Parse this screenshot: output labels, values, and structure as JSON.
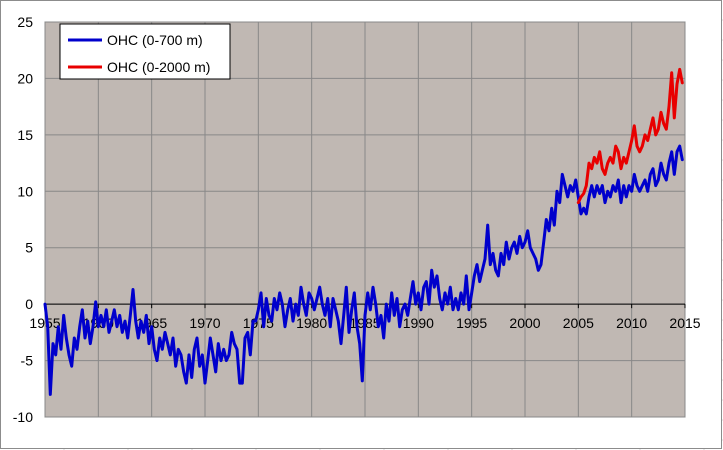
{
  "chart_data": {
    "type": "line",
    "xlim": [
      1955,
      2015
    ],
    "ylim": [
      -10,
      25
    ],
    "x_ticks": [
      1955,
      1960,
      1965,
      1970,
      1975,
      1980,
      1985,
      1990,
      1995,
      2000,
      2005,
      2010,
      2015
    ],
    "y_ticks": [
      -10,
      -5,
      0,
      5,
      10,
      15,
      20,
      25
    ],
    "x_tick_labels": [
      "1955",
      "1960",
      "1965",
      "1970",
      "1975",
      "1980",
      "1985",
      "1990",
      "1995",
      "2000",
      "2005",
      "2010",
      "2015"
    ],
    "y_tick_labels": [
      "-10",
      "-5",
      "0",
      "5",
      "10",
      "15",
      "20",
      "25"
    ],
    "grid": true,
    "legend_position": "top-left",
    "colors": {
      "plot_bg": "#c0b8b3",
      "series_1": "#0000cc",
      "series_2": "#e80000",
      "grid": "#888888",
      "sheet_grid": "#d4d4d4"
    },
    "series": [
      {
        "name": "OHC (0-700 m)",
        "color": "#0000cc",
        "points": [
          [
            1955.0,
            0.0
          ],
          [
            1955.25,
            -2.0
          ],
          [
            1955.5,
            -8.0
          ],
          [
            1955.75,
            -3.5
          ],
          [
            1956.0,
            -4.5
          ],
          [
            1956.25,
            -2.0
          ],
          [
            1956.5,
            -4.0
          ],
          [
            1956.75,
            -1.0
          ],
          [
            1957.0,
            -3.0
          ],
          [
            1957.25,
            -4.5
          ],
          [
            1957.5,
            -5.5
          ],
          [
            1957.75,
            -3.0
          ],
          [
            1958.0,
            -4.0
          ],
          [
            1958.25,
            -2.0
          ],
          [
            1958.5,
            -0.5
          ],
          [
            1958.75,
            -3.0
          ],
          [
            1959.0,
            -1.5
          ],
          [
            1959.25,
            -3.5
          ],
          [
            1959.5,
            -2.0
          ],
          [
            1959.75,
            0.2
          ],
          [
            1960.0,
            -2.0
          ],
          [
            1960.25,
            -1.0
          ],
          [
            1960.5,
            -2.0
          ],
          [
            1960.75,
            -0.5
          ],
          [
            1961.0,
            -2.5
          ],
          [
            1961.25,
            -1.5
          ],
          [
            1961.5,
            -0.5
          ],
          [
            1961.75,
            -2.0
          ],
          [
            1962.0,
            -1.0
          ],
          [
            1962.25,
            -2.5
          ],
          [
            1962.5,
            -1.5
          ],
          [
            1962.75,
            -3.0
          ],
          [
            1963.0,
            -1.0
          ],
          [
            1963.25,
            1.3
          ],
          [
            1963.5,
            -1.5
          ],
          [
            1963.75,
            -3.0
          ],
          [
            1964.0,
            -1.5
          ],
          [
            1964.25,
            -2.5
          ],
          [
            1964.5,
            -1.0
          ],
          [
            1964.75,
            -3.5
          ],
          [
            1965.0,
            -2.0
          ],
          [
            1965.25,
            -4.0
          ],
          [
            1965.5,
            -5.0
          ],
          [
            1965.75,
            -3.0
          ],
          [
            1966.0,
            -4.0
          ],
          [
            1966.25,
            -2.5
          ],
          [
            1966.5,
            -3.5
          ],
          [
            1966.75,
            -4.5
          ],
          [
            1967.0,
            -3.0
          ],
          [
            1967.25,
            -5.5
          ],
          [
            1967.5,
            -4.0
          ],
          [
            1967.75,
            -4.5
          ],
          [
            1968.0,
            -6.0
          ],
          [
            1968.25,
            -7.0
          ],
          [
            1968.5,
            -4.5
          ],
          [
            1968.75,
            -6.5
          ],
          [
            1969.0,
            -4.0
          ],
          [
            1969.25,
            -3.0
          ],
          [
            1969.5,
            -5.5
          ],
          [
            1969.75,
            -4.5
          ],
          [
            1970.0,
            -7.0
          ],
          [
            1970.25,
            -5.0
          ],
          [
            1970.5,
            -3.0
          ],
          [
            1970.75,
            -4.5
          ],
          [
            1971.0,
            -6.0
          ],
          [
            1971.25,
            -3.5
          ],
          [
            1971.5,
            -5.0
          ],
          [
            1971.75,
            -4.0
          ],
          [
            1972.0,
            -5.0
          ],
          [
            1972.25,
            -4.5
          ],
          [
            1972.5,
            -2.5
          ],
          [
            1972.75,
            -3.5
          ],
          [
            1973.0,
            -4.0
          ],
          [
            1973.25,
            -7.0
          ],
          [
            1973.5,
            -7.0
          ],
          [
            1973.75,
            -3.0
          ],
          [
            1974.0,
            -2.5
          ],
          [
            1974.25,
            -4.5
          ],
          [
            1974.5,
            -1.5
          ],
          [
            1974.75,
            -1.5
          ],
          [
            1975.0,
            -0.5
          ],
          [
            1975.25,
            1.0
          ],
          [
            1975.5,
            -2.0
          ],
          [
            1975.75,
            0.5
          ],
          [
            1976.0,
            -1.0
          ],
          [
            1976.25,
            -1.5
          ],
          [
            1976.5,
            0.5
          ],
          [
            1976.75,
            -0.5
          ],
          [
            1977.0,
            1.0
          ],
          [
            1977.25,
            0.0
          ],
          [
            1977.5,
            -2.0
          ],
          [
            1977.75,
            -0.5
          ],
          [
            1978.0,
            0.5
          ],
          [
            1978.25,
            -1.5
          ],
          [
            1978.5,
            0.0
          ],
          [
            1978.75,
            -1.0
          ],
          [
            1979.0,
            1.5
          ],
          [
            1979.25,
            0.0
          ],
          [
            1979.5,
            -1.0
          ],
          [
            1979.75,
            1.0
          ],
          [
            1980.0,
            0.5
          ],
          [
            1980.25,
            -0.5
          ],
          [
            1980.5,
            0.5
          ],
          [
            1980.75,
            1.5
          ],
          [
            1981.0,
            0.0
          ],
          [
            1981.25,
            -1.0
          ],
          [
            1981.5,
            0.5
          ],
          [
            1981.75,
            -2.0
          ],
          [
            1982.0,
            0.5
          ],
          [
            1982.25,
            -0.5
          ],
          [
            1982.5,
            -1.5
          ],
          [
            1982.75,
            -3.5
          ],
          [
            1983.0,
            -1.0
          ],
          [
            1983.25,
            1.5
          ],
          [
            1983.5,
            -2.5
          ],
          [
            1983.75,
            -0.5
          ],
          [
            1984.0,
            1.0
          ],
          [
            1984.25,
            -2.0
          ],
          [
            1984.5,
            -3.5
          ],
          [
            1984.75,
            -6.8
          ],
          [
            1985.0,
            -1.0
          ],
          [
            1985.25,
            1.0
          ],
          [
            1985.5,
            -0.5
          ],
          [
            1985.75,
            1.5
          ],
          [
            1986.0,
            0.0
          ],
          [
            1986.25,
            -2.0
          ],
          [
            1986.5,
            -1.0
          ],
          [
            1986.75,
            -3.0
          ],
          [
            1987.0,
            0.0
          ],
          [
            1987.25,
            -1.5
          ],
          [
            1987.5,
            1.0
          ],
          [
            1987.75,
            -1.0
          ],
          [
            1988.0,
            0.5
          ],
          [
            1988.25,
            -2.0
          ],
          [
            1988.5,
            -0.5
          ],
          [
            1988.75,
            0.0
          ],
          [
            1989.0,
            -1.0
          ],
          [
            1989.25,
            0.5
          ],
          [
            1989.5,
            2.0
          ],
          [
            1989.75,
            0.0
          ],
          [
            1990.0,
            1.0
          ],
          [
            1990.25,
            -0.5
          ],
          [
            1990.5,
            1.5
          ],
          [
            1990.75,
            2.0
          ],
          [
            1991.0,
            0.0
          ],
          [
            1991.25,
            3.0
          ],
          [
            1991.5,
            1.5
          ],
          [
            1991.75,
            2.5
          ],
          [
            1992.0,
            0.5
          ],
          [
            1992.25,
            -0.5
          ],
          [
            1992.5,
            1.0
          ],
          [
            1992.75,
            0.0
          ],
          [
            1993.0,
            1.5
          ],
          [
            1993.25,
            -0.5
          ],
          [
            1993.5,
            0.5
          ],
          [
            1993.75,
            -0.5
          ],
          [
            1994.0,
            1.0
          ],
          [
            1994.25,
            0.0
          ],
          [
            1994.5,
            2.5
          ],
          [
            1994.75,
            -0.5
          ],
          [
            1995.0,
            1.0
          ],
          [
            1995.25,
            2.5
          ],
          [
            1995.5,
            3.5
          ],
          [
            1995.75,
            2.0
          ],
          [
            1996.0,
            3.0
          ],
          [
            1996.25,
            4.0
          ],
          [
            1996.5,
            7.0
          ],
          [
            1996.75,
            3.5
          ],
          [
            1997.0,
            4.5
          ],
          [
            1997.25,
            3.0
          ],
          [
            1997.5,
            2.5
          ],
          [
            1997.75,
            4.5
          ],
          [
            1998.0,
            3.5
          ],
          [
            1998.25,
            5.5
          ],
          [
            1998.5,
            4.0
          ],
          [
            1998.75,
            5.0
          ],
          [
            1999.0,
            5.5
          ],
          [
            1999.25,
            4.5
          ],
          [
            1999.5,
            6.0
          ],
          [
            1999.75,
            5.0
          ],
          [
            2000.0,
            5.5
          ],
          [
            2000.25,
            6.5
          ],
          [
            2000.5,
            5.0
          ],
          [
            2000.75,
            4.5
          ],
          [
            2001.0,
            4.0
          ],
          [
            2001.25,
            3.0
          ],
          [
            2001.5,
            3.5
          ],
          [
            2001.75,
            5.5
          ],
          [
            2002.0,
            7.5
          ],
          [
            2002.25,
            6.5
          ],
          [
            2002.5,
            8.5
          ],
          [
            2002.75,
            7.0
          ],
          [
            2003.0,
            10.0
          ],
          [
            2003.25,
            9.0
          ],
          [
            2003.5,
            11.5
          ],
          [
            2003.75,
            10.5
          ],
          [
            2004.0,
            9.5
          ],
          [
            2004.25,
            10.5
          ],
          [
            2004.5,
            10.0
          ],
          [
            2004.75,
            11.0
          ],
          [
            2005.0,
            9.5
          ],
          [
            2005.25,
            8.0
          ],
          [
            2005.5,
            8.5
          ],
          [
            2005.75,
            8.0
          ],
          [
            2006.0,
            9.5
          ],
          [
            2006.25,
            10.5
          ],
          [
            2006.5,
            9.5
          ],
          [
            2006.75,
            10.5
          ],
          [
            2007.0,
            9.8
          ],
          [
            2007.25,
            10.5
          ],
          [
            2007.5,
            9.0
          ],
          [
            2007.75,
            10.0
          ],
          [
            2008.0,
            9.5
          ],
          [
            2008.25,
            10.5
          ],
          [
            2008.5,
            10.0
          ],
          [
            2008.75,
            11.0
          ],
          [
            2009.0,
            9.0
          ],
          [
            2009.25,
            10.5
          ],
          [
            2009.5,
            9.5
          ],
          [
            2009.75,
            10.5
          ],
          [
            2010.0,
            10.0
          ],
          [
            2010.25,
            11.5
          ],
          [
            2010.5,
            10.5
          ],
          [
            2010.75,
            10.0
          ],
          [
            2011.0,
            10.5
          ],
          [
            2011.25,
            11.0
          ],
          [
            2011.5,
            10.0
          ],
          [
            2011.75,
            11.5
          ],
          [
            2012.0,
            12.0
          ],
          [
            2012.25,
            10.5
          ],
          [
            2012.5,
            11.0
          ],
          [
            2012.75,
            12.5
          ],
          [
            2013.0,
            11.5
          ],
          [
            2013.25,
            11.0
          ],
          [
            2013.5,
            12.5
          ],
          [
            2013.75,
            13.5
          ],
          [
            2014.0,
            11.5
          ],
          [
            2014.25,
            13.5
          ],
          [
            2014.5,
            14.0
          ],
          [
            2014.75,
            12.8
          ]
        ]
      },
      {
        "name": "OHC (0-2000 m)",
        "color": "#e80000",
        "points": [
          [
            2005.0,
            9.0
          ],
          [
            2005.25,
            9.5
          ],
          [
            2005.5,
            9.8
          ],
          [
            2005.75,
            10.5
          ],
          [
            2006.0,
            12.5
          ],
          [
            2006.25,
            12.0
          ],
          [
            2006.5,
            13.0
          ],
          [
            2006.75,
            12.5
          ],
          [
            2007.0,
            13.5
          ],
          [
            2007.25,
            12.0
          ],
          [
            2007.5,
            11.5
          ],
          [
            2007.75,
            12.5
          ],
          [
            2008.0,
            13.0
          ],
          [
            2008.25,
            12.5
          ],
          [
            2008.5,
            14.0
          ],
          [
            2008.75,
            13.5
          ],
          [
            2009.0,
            12.0
          ],
          [
            2009.25,
            13.0
          ],
          [
            2009.5,
            12.5
          ],
          [
            2009.75,
            13.5
          ],
          [
            2010.0,
            14.5
          ],
          [
            2010.25,
            15.8
          ],
          [
            2010.5,
            14.0
          ],
          [
            2010.75,
            13.5
          ],
          [
            2011.0,
            14.0
          ],
          [
            2011.25,
            15.0
          ],
          [
            2011.5,
            14.5
          ],
          [
            2011.75,
            15.5
          ],
          [
            2012.0,
            16.5
          ],
          [
            2012.25,
            15.0
          ],
          [
            2012.5,
            15.5
          ],
          [
            2012.75,
            17.0
          ],
          [
            2013.0,
            16.0
          ],
          [
            2013.25,
            15.5
          ],
          [
            2013.5,
            17.5
          ],
          [
            2013.75,
            20.5
          ],
          [
            2014.0,
            16.5
          ],
          [
            2014.25,
            19.5
          ],
          [
            2014.5,
            20.8
          ],
          [
            2014.75,
            19.6
          ]
        ]
      }
    ]
  }
}
